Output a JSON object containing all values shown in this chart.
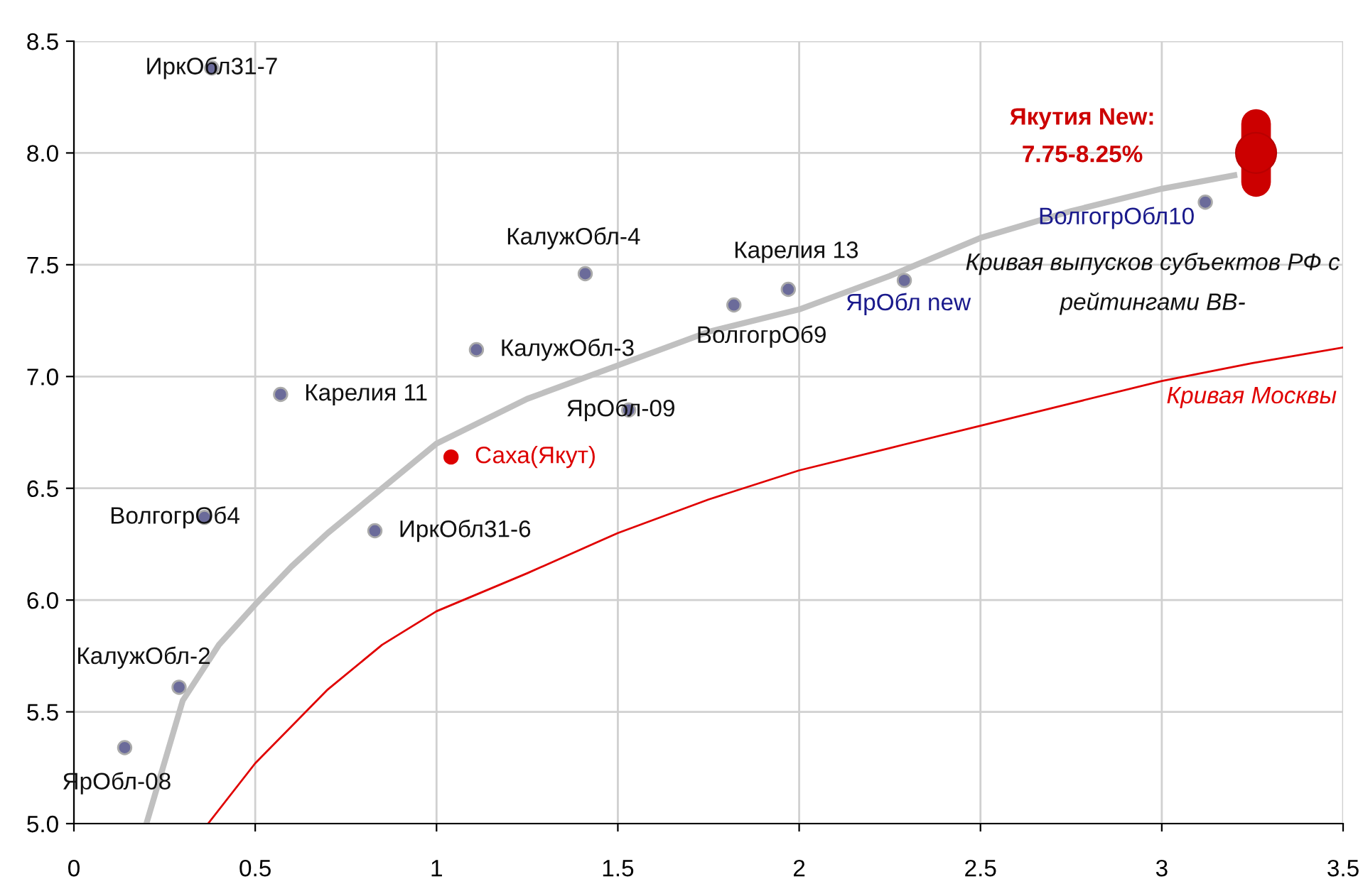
{
  "chart_data": {
    "type": "scatter",
    "xlim": [
      0,
      3.5
    ],
    "ylim": [
      5.0,
      8.5
    ],
    "xticks": [
      0,
      0.5,
      1,
      1.5,
      2,
      2.5,
      3,
      3.5
    ],
    "yticks": [
      {
        "value": 5,
        "label": "5.0"
      },
      5.5,
      {
        "value": 6,
        "label": "6.0"
      },
      6.5,
      {
        "value": 7,
        "label": "7.0"
      },
      7.5,
      {
        "value": 8,
        "label": "8.0"
      },
      8.5
    ],
    "grid": true,
    "legend": false,
    "marker": "circle",
    "series": [
      {
        "name": "Кривая выпусков субъектов РФ с\nрейтингами ВВ-",
        "type": "line",
        "marker": "none",
        "color": "#c0c0c0",
        "x": [
          0.2,
          0.3,
          0.4,
          0.5,
          0.6,
          0.7,
          0.85,
          1.0,
          1.25,
          1.5,
          1.75,
          2.0,
          2.25,
          2.5,
          2.75,
          3.0,
          3.2
        ],
        "values": [
          5.0,
          5.55,
          5.8,
          5.98,
          6.15,
          6.3,
          6.5,
          6.7,
          6.9,
          7.05,
          7.2,
          7.3,
          7.45,
          7.62,
          7.74,
          7.84,
          7.9
        ]
      },
      {
        "name": "Кривая Москвы",
        "type": "line",
        "marker": "none",
        "color": "#e00000",
        "x": [
          0.37,
          0.5,
          0.7,
          0.85,
          1.0,
          1.25,
          1.5,
          1.75,
          2.0,
          2.25,
          2.5,
          2.75,
          3.0,
          3.25,
          3.5
        ],
        "values": [
          5.0,
          5.27,
          5.6,
          5.8,
          5.95,
          6.12,
          6.3,
          6.45,
          6.58,
          6.68,
          6.78,
          6.88,
          6.98,
          7.06,
          7.13
        ]
      },
      {
        "name": "ИркОбл31-7",
        "color": "#6b6b9a",
        "x": [
          0.38
        ],
        "values": [
          8.38
        ]
      },
      {
        "name": "Карелия 11",
        "color": "#6b6b9a",
        "x": [
          0.57
        ],
        "values": [
          6.92
        ]
      },
      {
        "name": "КалужОбл-3",
        "color": "#6b6b9a",
        "x": [
          1.11
        ],
        "values": [
          7.12
        ]
      },
      {
        "name": "КалужОбл-4",
        "color": "#6b6b9a",
        "x": [
          1.41
        ],
        "values": [
          7.46
        ]
      },
      {
        "name": "ЯрОбл-09",
        "color": "#6b6b9a",
        "x": [
          1.53
        ],
        "values": [
          6.85
        ]
      },
      {
        "name": "Саха(Якут)",
        "color": "#dd0000",
        "x": [
          1.04
        ],
        "values": [
          6.64
        ]
      },
      {
        "name": "ИркОбл31-6",
        "color": "#6b6b9a",
        "x": [
          0.83
        ],
        "values": [
          6.31
        ]
      },
      {
        "name": "ВолгогрОб4",
        "color": "#6b6b9a",
        "x": [
          0.36
        ],
        "values": [
          6.37
        ]
      },
      {
        "name": "КалужОбл-2",
        "color": "#6b6b9a",
        "x": [
          0.29
        ],
        "values": [
          5.61
        ]
      },
      {
        "name": "ЯрОбл-08",
        "color": "#6b6b9a",
        "x": [
          0.14
        ],
        "values": [
          5.34
        ]
      },
      {
        "name": "ВолгогрОб9",
        "color": "#6b6b9a",
        "x": [
          1.82
        ],
        "values": [
          7.32
        ]
      },
      {
        "name": "Карелия 13",
        "color": "#6b6b9a",
        "x": [
          1.97
        ],
        "values": [
          7.39
        ]
      },
      {
        "name": "ЯрОбл new",
        "color": "#6b6b9a",
        "x": [
          2.29
        ],
        "values": [
          7.43
        ]
      },
      {
        "name": "ВолгогрОбл10",
        "color": "#6b6b9a",
        "x": [
          3.12
        ],
        "values": [
          7.78
        ]
      },
      {
        "name": "Якутия New:\n7.75-8.25%",
        "color": "#cc0000",
        "x": [
          3.26
        ],
        "values": [
          8.0
        ],
        "errors": [
          0.13
        ]
      }
    ]
  }
}
